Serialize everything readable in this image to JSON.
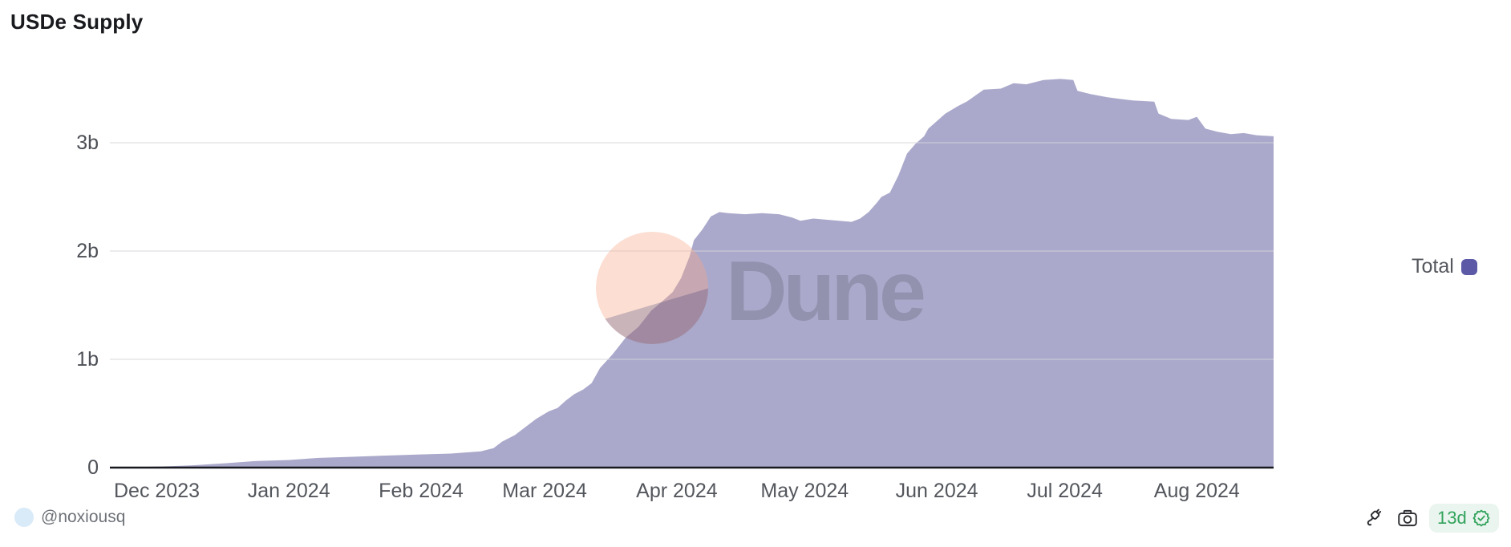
{
  "title": "USDe Supply",
  "watermark": {
    "text": "Dune"
  },
  "legend": {
    "items": [
      {
        "label": "Total",
        "color": "#5c59a6"
      }
    ]
  },
  "footer": {
    "author_handle": "@noxiousq",
    "age_badge": "13d"
  },
  "icons": {
    "plug": "plug-icon",
    "camera": "camera-icon",
    "verified": "verified-seal-icon"
  },
  "colors": {
    "area_fill": "rgba(100,98,161,0.55)",
    "legend_swatch": "#5c59a6",
    "axis_line": "#17191f",
    "gridline": "rgba(213,213,219,0.6)",
    "badge_bg": "#e9f5ee",
    "badge_text": "#33a35c"
  },
  "chart_data": {
    "type": "area",
    "title": "USDe Supply",
    "xlabel": "",
    "ylabel": "",
    "unit": "billions USDe",
    "grid": true,
    "legend_position": "right",
    "x_domain": [
      "2023-11-20",
      "2024-08-19"
    ],
    "y_domain": [
      0,
      3.72
    ],
    "yticks": [
      {
        "v": 0,
        "label": "0"
      },
      {
        "v": 1,
        "label": "1b"
      },
      {
        "v": 2,
        "label": "2b"
      },
      {
        "v": 3,
        "label": "3b"
      }
    ],
    "xticks": [
      {
        "d": "2023-12-01",
        "label": "Dec 2023"
      },
      {
        "d": "2024-01-01",
        "label": "Jan 2024"
      },
      {
        "d": "2024-02-01",
        "label": "Feb 2024"
      },
      {
        "d": "2024-03-01",
        "label": "Mar 2024"
      },
      {
        "d": "2024-04-01",
        "label": "Apr 2024"
      },
      {
        "d": "2024-05-01",
        "label": "May 2024"
      },
      {
        "d": "2024-06-01",
        "label": "Jun 2024"
      },
      {
        "d": "2024-07-01",
        "label": "Jul 2024"
      },
      {
        "d": "2024-08-01",
        "label": "Aug 2024"
      }
    ],
    "series": [
      {
        "name": "Total",
        "color": "#5c59a6",
        "area_color": "rgba(100,98,161,0.55)",
        "points": [
          {
            "d": "2023-11-20",
            "v": 0.0
          },
          {
            "d": "2023-12-02",
            "v": 0.01
          },
          {
            "d": "2023-12-09",
            "v": 0.02
          },
          {
            "d": "2023-12-17",
            "v": 0.04
          },
          {
            "d": "2023-12-24",
            "v": 0.06
          },
          {
            "d": "2024-01-01",
            "v": 0.07
          },
          {
            "d": "2024-01-08",
            "v": 0.09
          },
          {
            "d": "2024-01-16",
            "v": 0.1
          },
          {
            "d": "2024-01-23",
            "v": 0.11
          },
          {
            "d": "2024-01-31",
            "v": 0.12
          },
          {
            "d": "2024-02-08",
            "v": 0.13
          },
          {
            "d": "2024-02-15",
            "v": 0.15
          },
          {
            "d": "2024-02-18",
            "v": 0.18
          },
          {
            "d": "2024-02-20",
            "v": 0.24
          },
          {
            "d": "2024-02-23",
            "v": 0.3
          },
          {
            "d": "2024-02-25",
            "v": 0.36
          },
          {
            "d": "2024-02-28",
            "v": 0.45
          },
          {
            "d": "2024-03-02",
            "v": 0.52
          },
          {
            "d": "2024-03-04",
            "v": 0.55
          },
          {
            "d": "2024-03-06",
            "v": 0.62
          },
          {
            "d": "2024-03-08",
            "v": 0.68
          },
          {
            "d": "2024-03-10",
            "v": 0.72
          },
          {
            "d": "2024-03-12",
            "v": 0.78
          },
          {
            "d": "2024-03-14",
            "v": 0.92
          },
          {
            "d": "2024-03-17",
            "v": 1.05
          },
          {
            "d": "2024-03-20",
            "v": 1.2
          },
          {
            "d": "2024-03-23",
            "v": 1.3
          },
          {
            "d": "2024-03-26",
            "v": 1.45
          },
          {
            "d": "2024-03-29",
            "v": 1.55
          },
          {
            "d": "2024-03-31",
            "v": 1.62
          },
          {
            "d": "2024-04-02",
            "v": 1.75
          },
          {
            "d": "2024-04-04",
            "v": 1.95
          },
          {
            "d": "2024-04-05",
            "v": 2.1
          },
          {
            "d": "2024-04-07",
            "v": 2.2
          },
          {
            "d": "2024-04-09",
            "v": 2.32
          },
          {
            "d": "2024-04-11",
            "v": 2.36
          },
          {
            "d": "2024-04-13",
            "v": 2.35
          },
          {
            "d": "2024-04-17",
            "v": 2.34
          },
          {
            "d": "2024-04-21",
            "v": 2.35
          },
          {
            "d": "2024-04-25",
            "v": 2.34
          },
          {
            "d": "2024-04-28",
            "v": 2.31
          },
          {
            "d": "2024-04-30",
            "v": 2.28
          },
          {
            "d": "2024-05-03",
            "v": 2.3
          },
          {
            "d": "2024-05-06",
            "v": 2.29
          },
          {
            "d": "2024-05-09",
            "v": 2.28
          },
          {
            "d": "2024-05-12",
            "v": 2.27
          },
          {
            "d": "2024-05-14",
            "v": 2.3
          },
          {
            "d": "2024-05-16",
            "v": 2.36
          },
          {
            "d": "2024-05-18",
            "v": 2.45
          },
          {
            "d": "2024-05-19",
            "v": 2.5
          },
          {
            "d": "2024-05-21",
            "v": 2.54
          },
          {
            "d": "2024-05-23",
            "v": 2.7
          },
          {
            "d": "2024-05-25",
            "v": 2.9
          },
          {
            "d": "2024-05-27",
            "v": 2.99
          },
          {
            "d": "2024-05-29",
            "v": 3.06
          },
          {
            "d": "2024-05-30",
            "v": 3.13
          },
          {
            "d": "2024-06-03",
            "v": 3.27
          },
          {
            "d": "2024-06-06",
            "v": 3.34
          },
          {
            "d": "2024-06-08",
            "v": 3.38
          },
          {
            "d": "2024-06-12",
            "v": 3.49
          },
          {
            "d": "2024-06-16",
            "v": 3.5
          },
          {
            "d": "2024-06-19",
            "v": 3.55
          },
          {
            "d": "2024-06-22",
            "v": 3.54
          },
          {
            "d": "2024-06-26",
            "v": 3.58
          },
          {
            "d": "2024-06-30",
            "v": 3.59
          },
          {
            "d": "2024-07-03",
            "v": 3.58
          },
          {
            "d": "2024-07-04",
            "v": 3.48
          },
          {
            "d": "2024-07-07",
            "v": 3.45
          },
          {
            "d": "2024-07-11",
            "v": 3.42
          },
          {
            "d": "2024-07-17",
            "v": 3.39
          },
          {
            "d": "2024-07-22",
            "v": 3.38
          },
          {
            "d": "2024-07-23",
            "v": 3.27
          },
          {
            "d": "2024-07-26",
            "v": 3.22
          },
          {
            "d": "2024-07-30",
            "v": 3.21
          },
          {
            "d": "2024-08-01",
            "v": 3.24
          },
          {
            "d": "2024-08-03",
            "v": 3.13
          },
          {
            "d": "2024-08-06",
            "v": 3.1
          },
          {
            "d": "2024-08-09",
            "v": 3.08
          },
          {
            "d": "2024-08-12",
            "v": 3.09
          },
          {
            "d": "2024-08-15",
            "v": 3.07
          },
          {
            "d": "2024-08-19",
            "v": 3.06
          }
        ]
      }
    ]
  }
}
